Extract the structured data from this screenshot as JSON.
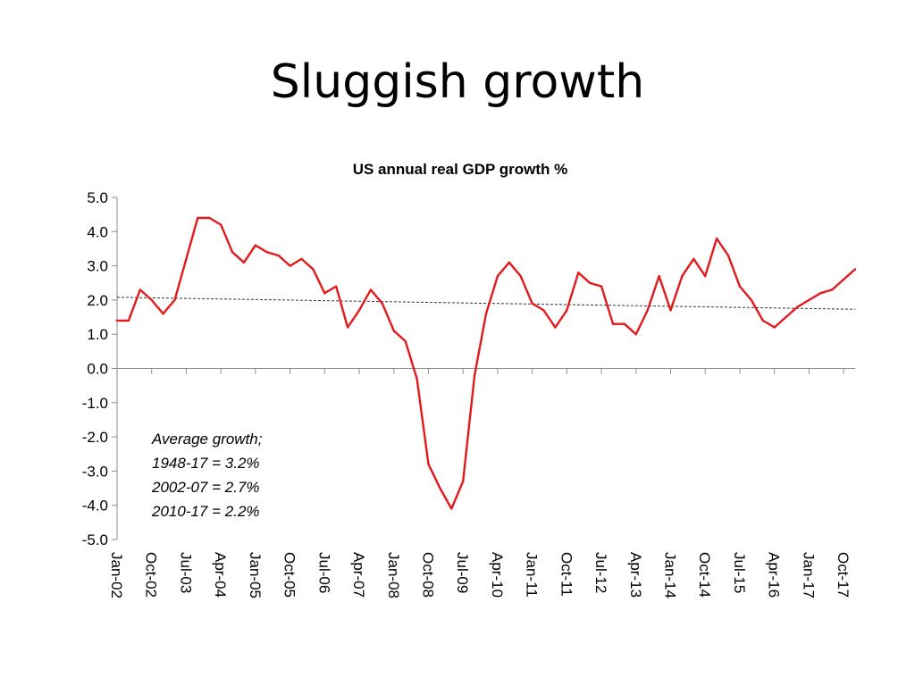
{
  "slide": {
    "title": "Sluggish growth"
  },
  "chart_data": {
    "type": "line",
    "title": "US annual real GDP growth %",
    "xlabel": "",
    "ylabel": "",
    "ylim": [
      -5.0,
      5.0
    ],
    "y_ticks": [
      "5.0",
      "4.0",
      "3.0",
      "2.0",
      "1.0",
      "0.0",
      "-1.0",
      "-2.0",
      "-3.0",
      "-4.0",
      "-5.0"
    ],
    "x_tick_labels": [
      "Jan-02",
      "Oct-02",
      "Jul-03",
      "Apr-04",
      "Jan-05",
      "Oct-05",
      "Jul-06",
      "Apr-07",
      "Jan-08",
      "Oct-08",
      "Jul-09",
      "Apr-10",
      "Jan-11",
      "Oct-11",
      "Jul-12",
      "Apr-13",
      "Jan-14",
      "Oct-14",
      "Jul-15",
      "Apr-16",
      "Jan-17",
      "Oct-17"
    ],
    "series": [
      {
        "name": "US annual real GDP growth %",
        "color": "#e31a1c",
        "values": [
          1.4,
          1.4,
          2.3,
          2.0,
          1.6,
          2.0,
          3.2,
          4.4,
          4.4,
          4.2,
          3.4,
          3.1,
          3.6,
          3.4,
          3.3,
          3.0,
          3.2,
          2.9,
          2.2,
          2.4,
          1.2,
          1.7,
          2.3,
          1.9,
          1.1,
          0.8,
          -0.3,
          -2.8,
          -3.5,
          -4.1,
          -3.3,
          -0.2,
          1.6,
          2.7,
          3.1,
          2.7,
          1.9,
          1.7,
          1.2,
          1.7,
          2.8,
          2.5,
          2.4,
          1.3,
          1.3,
          1.0,
          1.7,
          2.7,
          1.7,
          2.7,
          3.2,
          2.7,
          3.8,
          3.3,
          2.4,
          2.0,
          1.4,
          1.2,
          1.5,
          1.8,
          2.0,
          2.2,
          2.3,
          2.6,
          2.9
        ]
      },
      {
        "name": "Linear trend",
        "color": "#333333",
        "style": "dotted",
        "start": 2.08,
        "end": 1.73
      }
    ],
    "annotation": {
      "lines": [
        "Average growth;",
        "1948-17 = 3.2%",
        "2002-07 = 2.7%",
        "2010-17 = 2.2%"
      ]
    }
  }
}
